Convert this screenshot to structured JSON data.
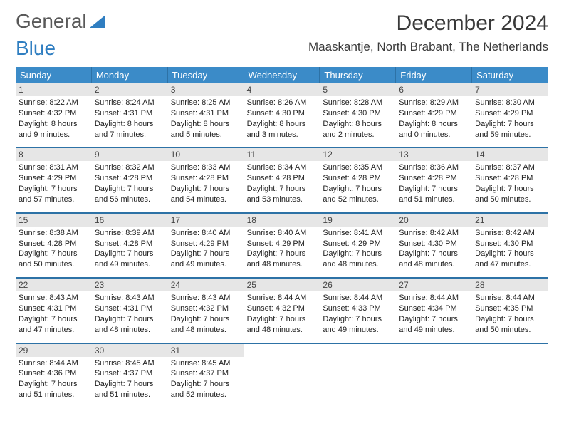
{
  "logo": {
    "word1": "General",
    "word2": "Blue"
  },
  "title": "December 2024",
  "location": "Maaskantje, North Brabant, The Netherlands",
  "colors": {
    "header_bg": "#3b8bc8",
    "header_text": "#ffffff",
    "rule": "#2d72a6",
    "daynum_bg": "#e6e6e6",
    "text": "#222222",
    "logo_gray": "#595959",
    "logo_blue": "#2f7ec1"
  },
  "day_names": [
    "Sunday",
    "Monday",
    "Tuesday",
    "Wednesday",
    "Thursday",
    "Friday",
    "Saturday"
  ],
  "weeks": [
    [
      {
        "n": "1",
        "sr": "Sunrise: 8:22 AM",
        "ss": "Sunset: 4:32 PM",
        "d1": "Daylight: 8 hours",
        "d2": "and 9 minutes."
      },
      {
        "n": "2",
        "sr": "Sunrise: 8:24 AM",
        "ss": "Sunset: 4:31 PM",
        "d1": "Daylight: 8 hours",
        "d2": "and 7 minutes."
      },
      {
        "n": "3",
        "sr": "Sunrise: 8:25 AM",
        "ss": "Sunset: 4:31 PM",
        "d1": "Daylight: 8 hours",
        "d2": "and 5 minutes."
      },
      {
        "n": "4",
        "sr": "Sunrise: 8:26 AM",
        "ss": "Sunset: 4:30 PM",
        "d1": "Daylight: 8 hours",
        "d2": "and 3 minutes."
      },
      {
        "n": "5",
        "sr": "Sunrise: 8:28 AM",
        "ss": "Sunset: 4:30 PM",
        "d1": "Daylight: 8 hours",
        "d2": "and 2 minutes."
      },
      {
        "n": "6",
        "sr": "Sunrise: 8:29 AM",
        "ss": "Sunset: 4:29 PM",
        "d1": "Daylight: 8 hours",
        "d2": "and 0 minutes."
      },
      {
        "n": "7",
        "sr": "Sunrise: 8:30 AM",
        "ss": "Sunset: 4:29 PM",
        "d1": "Daylight: 7 hours",
        "d2": "and 59 minutes."
      }
    ],
    [
      {
        "n": "8",
        "sr": "Sunrise: 8:31 AM",
        "ss": "Sunset: 4:29 PM",
        "d1": "Daylight: 7 hours",
        "d2": "and 57 minutes."
      },
      {
        "n": "9",
        "sr": "Sunrise: 8:32 AM",
        "ss": "Sunset: 4:28 PM",
        "d1": "Daylight: 7 hours",
        "d2": "and 56 minutes."
      },
      {
        "n": "10",
        "sr": "Sunrise: 8:33 AM",
        "ss": "Sunset: 4:28 PM",
        "d1": "Daylight: 7 hours",
        "d2": "and 54 minutes."
      },
      {
        "n": "11",
        "sr": "Sunrise: 8:34 AM",
        "ss": "Sunset: 4:28 PM",
        "d1": "Daylight: 7 hours",
        "d2": "and 53 minutes."
      },
      {
        "n": "12",
        "sr": "Sunrise: 8:35 AM",
        "ss": "Sunset: 4:28 PM",
        "d1": "Daylight: 7 hours",
        "d2": "and 52 minutes."
      },
      {
        "n": "13",
        "sr": "Sunrise: 8:36 AM",
        "ss": "Sunset: 4:28 PM",
        "d1": "Daylight: 7 hours",
        "d2": "and 51 minutes."
      },
      {
        "n": "14",
        "sr": "Sunrise: 8:37 AM",
        "ss": "Sunset: 4:28 PM",
        "d1": "Daylight: 7 hours",
        "d2": "and 50 minutes."
      }
    ],
    [
      {
        "n": "15",
        "sr": "Sunrise: 8:38 AM",
        "ss": "Sunset: 4:28 PM",
        "d1": "Daylight: 7 hours",
        "d2": "and 50 minutes."
      },
      {
        "n": "16",
        "sr": "Sunrise: 8:39 AM",
        "ss": "Sunset: 4:28 PM",
        "d1": "Daylight: 7 hours",
        "d2": "and 49 minutes."
      },
      {
        "n": "17",
        "sr": "Sunrise: 8:40 AM",
        "ss": "Sunset: 4:29 PM",
        "d1": "Daylight: 7 hours",
        "d2": "and 49 minutes."
      },
      {
        "n": "18",
        "sr": "Sunrise: 8:40 AM",
        "ss": "Sunset: 4:29 PM",
        "d1": "Daylight: 7 hours",
        "d2": "and 48 minutes."
      },
      {
        "n": "19",
        "sr": "Sunrise: 8:41 AM",
        "ss": "Sunset: 4:29 PM",
        "d1": "Daylight: 7 hours",
        "d2": "and 48 minutes."
      },
      {
        "n": "20",
        "sr": "Sunrise: 8:42 AM",
        "ss": "Sunset: 4:30 PM",
        "d1": "Daylight: 7 hours",
        "d2": "and 48 minutes."
      },
      {
        "n": "21",
        "sr": "Sunrise: 8:42 AM",
        "ss": "Sunset: 4:30 PM",
        "d1": "Daylight: 7 hours",
        "d2": "and 47 minutes."
      }
    ],
    [
      {
        "n": "22",
        "sr": "Sunrise: 8:43 AM",
        "ss": "Sunset: 4:31 PM",
        "d1": "Daylight: 7 hours",
        "d2": "and 47 minutes."
      },
      {
        "n": "23",
        "sr": "Sunrise: 8:43 AM",
        "ss": "Sunset: 4:31 PM",
        "d1": "Daylight: 7 hours",
        "d2": "and 48 minutes."
      },
      {
        "n": "24",
        "sr": "Sunrise: 8:43 AM",
        "ss": "Sunset: 4:32 PM",
        "d1": "Daylight: 7 hours",
        "d2": "and 48 minutes."
      },
      {
        "n": "25",
        "sr": "Sunrise: 8:44 AM",
        "ss": "Sunset: 4:32 PM",
        "d1": "Daylight: 7 hours",
        "d2": "and 48 minutes."
      },
      {
        "n": "26",
        "sr": "Sunrise: 8:44 AM",
        "ss": "Sunset: 4:33 PM",
        "d1": "Daylight: 7 hours",
        "d2": "and 49 minutes."
      },
      {
        "n": "27",
        "sr": "Sunrise: 8:44 AM",
        "ss": "Sunset: 4:34 PM",
        "d1": "Daylight: 7 hours",
        "d2": "and 49 minutes."
      },
      {
        "n": "28",
        "sr": "Sunrise: 8:44 AM",
        "ss": "Sunset: 4:35 PM",
        "d1": "Daylight: 7 hours",
        "d2": "and 50 minutes."
      }
    ],
    [
      {
        "n": "29",
        "sr": "Sunrise: 8:44 AM",
        "ss": "Sunset: 4:36 PM",
        "d1": "Daylight: 7 hours",
        "d2": "and 51 minutes."
      },
      {
        "n": "30",
        "sr": "Sunrise: 8:45 AM",
        "ss": "Sunset: 4:37 PM",
        "d1": "Daylight: 7 hours",
        "d2": "and 51 minutes."
      },
      {
        "n": "31",
        "sr": "Sunrise: 8:45 AM",
        "ss": "Sunset: 4:37 PM",
        "d1": "Daylight: 7 hours",
        "d2": "and 52 minutes."
      },
      null,
      null,
      null,
      null
    ]
  ]
}
